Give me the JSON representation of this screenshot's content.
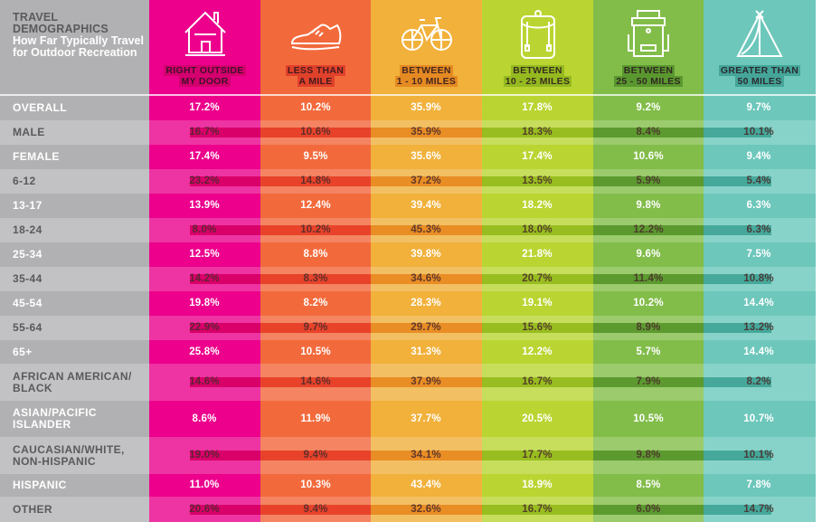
{
  "chart_data": {
    "type": "table",
    "title": "TRAVEL DEMOGRAPHICS",
    "subtitle": "How Far Typically Travel for Outdoor Recreation",
    "columns": [
      {
        "key": "door",
        "label_lines": [
          "RIGHT OUTSIDE",
          "MY DOOR"
        ],
        "icon": "house-icon",
        "color": "#ec008c",
        "light": "#ee34a2",
        "band": "#d9006a",
        "label_bg": "#d4006e"
      },
      {
        "key": "mile",
        "label_lines": [
          "LESS THAN",
          "A MILE"
        ],
        "icon": "sneaker-icon",
        "color": "#f26a3c",
        "light": "#f48462",
        "band": "#e8432a",
        "label_bg": "#e0412a"
      },
      {
        "key": "1_10",
        "label_lines": [
          "BETWEEN",
          "1 - 10 MILES"
        ],
        "icon": "bicycle-icon",
        "color": "#f1b13b",
        "light": "#f2c063",
        "band": "#e98d25",
        "label_bg": "#e58a22"
      },
      {
        "key": "10_25",
        "label_lines": [
          "BETWEEN",
          "10 - 25 MILES"
        ],
        "icon": "backpack-icon",
        "color": "#bad532",
        "light": "#c7de5d",
        "band": "#98bd20",
        "label_bg": "#95ba20"
      },
      {
        "key": "25_50",
        "label_lines": [
          "BETWEEN",
          "25 - 50 MILES"
        ],
        "icon": "hiking-pack-icon",
        "color": "#82bd4a",
        "light": "#9bcb6d",
        "band": "#5c9a30",
        "label_bg": "#5a982f"
      },
      {
        "key": "50plus",
        "label_lines": [
          "GREATER THAN",
          "50 MILES"
        ],
        "icon": "tent-icon",
        "color": "#6dc7bb",
        "light": "#88d3c9",
        "band": "#45a89a",
        "label_bg": "#44a598"
      }
    ],
    "label_column_color": "#b1b1b3",
    "label_column_light": "#c2c2c4",
    "rows": [
      {
        "label_lines": [
          "OVERALL"
        ],
        "values": [
          "17.2%",
          "10.2%",
          "35.9%",
          "17.8%",
          "9.2%",
          "9.7%"
        ]
      },
      {
        "label_lines": [
          "MALE"
        ],
        "values": [
          "16.7%",
          "10.6%",
          "35.9%",
          "18.3%",
          "8.4%",
          "10.1%"
        ]
      },
      {
        "label_lines": [
          "FEMALE"
        ],
        "values": [
          "17.4%",
          "9.5%",
          "35.6%",
          "17.4%",
          "10.6%",
          "9.4%"
        ]
      },
      {
        "label_lines": [
          "6-12"
        ],
        "values": [
          "23.2%",
          "14.8%",
          "37.2%",
          "13.5%",
          "5.9%",
          "5.4%"
        ]
      },
      {
        "label_lines": [
          "13-17"
        ],
        "values": [
          "13.9%",
          "12.4%",
          "39.4%",
          "18.2%",
          "9.8%",
          "6.3%"
        ]
      },
      {
        "label_lines": [
          "18-24"
        ],
        "values": [
          "8.0%",
          "10.2%",
          "45.3%",
          "18.0%",
          "12.2%",
          "6.3%"
        ]
      },
      {
        "label_lines": [
          "25-34"
        ],
        "values": [
          "12.5%",
          "8.8%",
          "39.8%",
          "21.8%",
          "9.6%",
          "7.5%"
        ]
      },
      {
        "label_lines": [
          "35-44"
        ],
        "values": [
          "14.2%",
          "8.3%",
          "34.6%",
          "20.7%",
          "11.4%",
          "10.8%"
        ]
      },
      {
        "label_lines": [
          "45-54"
        ],
        "values": [
          "19.8%",
          "8.2%",
          "28.3%",
          "19.1%",
          "10.2%",
          "14.4%"
        ]
      },
      {
        "label_lines": [
          "55-64"
        ],
        "values": [
          "22.9%",
          "9.7%",
          "29.7%",
          "15.6%",
          "8.9%",
          "13.2%"
        ]
      },
      {
        "label_lines": [
          "65+"
        ],
        "values": [
          "25.8%",
          "10.5%",
          "31.3%",
          "12.2%",
          "5.7%",
          "14.4%"
        ]
      },
      {
        "label_lines": [
          "AFRICAN AMERICAN/",
          "BLACK"
        ],
        "values": [
          "14.6%",
          "14.6%",
          "37.9%",
          "16.7%",
          "7.9%",
          "8.2%"
        ]
      },
      {
        "label_lines": [
          "ASIAN/PACIFIC",
          "ISLANDER"
        ],
        "values": [
          "8.6%",
          "11.9%",
          "37.7%",
          "20.5%",
          "10.5%",
          "10.7%"
        ]
      },
      {
        "label_lines": [
          "CAUCASIAN/WHITE,",
          "NON-HISPANIC"
        ],
        "values": [
          "19.0%",
          "9.4%",
          "34.1%",
          "17.7%",
          "9.8%",
          "10.1%"
        ]
      },
      {
        "label_lines": [
          "HISPANIC"
        ],
        "values": [
          "11.0%",
          "10.3%",
          "43.4%",
          "18.9%",
          "8.5%",
          "7.8%"
        ]
      },
      {
        "label_lines": [
          "OTHER"
        ],
        "values": [
          "20.6%",
          "9.4%",
          "32.6%",
          "16.7%",
          "6.0%",
          "14.7%"
        ]
      }
    ]
  }
}
